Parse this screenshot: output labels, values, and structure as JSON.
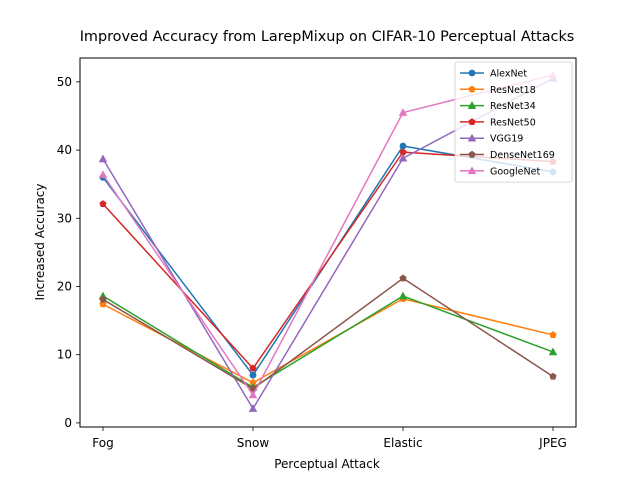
{
  "chart_data": {
    "type": "line",
    "title": "Improved Accuracy from LarepMixup on CIFAR-10 Perceptual Attacks",
    "xlabel": "Perceptual Attack",
    "ylabel": "Increased Accuracy",
    "categories": [
      "Fog",
      "Snow",
      "Elastic",
      "JPEG"
    ],
    "yticks": [
      0,
      10,
      20,
      30,
      40,
      50
    ],
    "ylim": [
      -0.6,
      53.5
    ],
    "grid": false,
    "legend_position": "top-right",
    "series": [
      {
        "name": "AlexNet",
        "color": "#1f77b4",
        "marker": "circle",
        "values": [
          36.0,
          7.0,
          40.6,
          36.8
        ]
      },
      {
        "name": "ResNet18",
        "color": "#ff7f0e",
        "marker": "pentagon",
        "values": [
          17.4,
          5.9,
          18.2,
          12.9
        ]
      },
      {
        "name": "ResNet34",
        "color": "#2ca02c",
        "marker": "triangle-up",
        "values": [
          18.6,
          5.2,
          18.6,
          10.4
        ]
      },
      {
        "name": "ResNet50",
        "color": "#d62728",
        "marker": "pentagon",
        "values": [
          32.1,
          8.0,
          39.7,
          38.3
        ]
      },
      {
        "name": "VGG19",
        "color": "#9467bd",
        "marker": "triangle-up",
        "values": [
          38.7,
          2.1,
          38.8,
          50.5
        ]
      },
      {
        "name": "DenseNet169",
        "color": "#8c564b",
        "marker": "pentagon",
        "values": [
          18.1,
          5.0,
          21.2,
          6.8
        ]
      },
      {
        "name": "GoogleNet",
        "color": "#e377c2",
        "marker": "triangle-up",
        "values": [
          36.4,
          4.1,
          45.5,
          51.0
        ]
      }
    ]
  }
}
